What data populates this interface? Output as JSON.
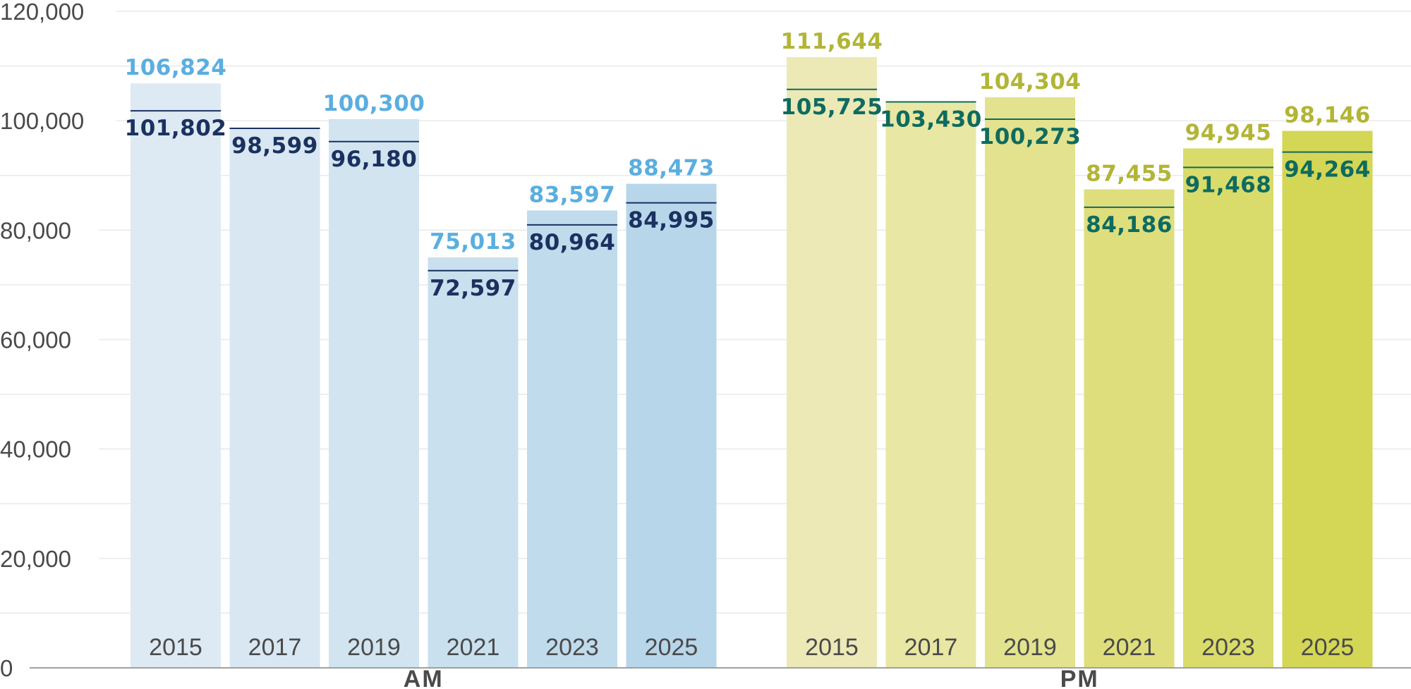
{
  "chart_data": {
    "type": "bar",
    "title": "",
    "xlabel": "",
    "ylabel": "",
    "ylim": [
      0,
      120000
    ],
    "yticks": [
      0,
      20000,
      40000,
      60000,
      80000,
      100000,
      120000
    ],
    "ytick_labels": [
      "0",
      "20,000",
      "40,000",
      "60,000",
      "80,000",
      "100,000",
      "120,000"
    ],
    "grid": true,
    "legend": "none",
    "groups": [
      {
        "label": "AM",
        "categories": [
          "2015",
          "2017",
          "2019",
          "2021",
          "2023",
          "2025"
        ],
        "bar_values": [
          106824,
          98599,
          100300,
          75013,
          83597,
          88473
        ],
        "bar_labels": [
          "106,824",
          "",
          "100,300",
          "75,013",
          "83,597",
          "88,473"
        ],
        "marker_values": [
          101802,
          98599,
          96180,
          72597,
          80964,
          84995
        ],
        "marker_labels": [
          "101,802",
          "98,599",
          "96,180",
          "72,597",
          "80,964",
          "84,995"
        ],
        "bar_colors": [
          "#deeaf3",
          "#d8e7f1",
          "#d1e4f0",
          "#c9e0ee",
          "#c0dbec",
          "#b8d6ea"
        ],
        "bar_label_color": "#5aaee0",
        "marker_color": "#1b3160"
      },
      {
        "label": "PM",
        "categories": [
          "2015",
          "2017",
          "2019",
          "2021",
          "2023",
          "2025"
        ],
        "bar_values": [
          111644,
          103430,
          104304,
          87455,
          94945,
          98146
        ],
        "bar_labels": [
          "111,644",
          "",
          "104,304",
          "87,455",
          "94,945",
          "98,146"
        ],
        "marker_values": [
          105725,
          103430,
          100273,
          84186,
          91468,
          94264
        ],
        "marker_labels": [
          "105,725",
          "103,430",
          "100,273",
          "84,186",
          "91,468",
          "94,264"
        ],
        "bar_colors": [
          "#ece9b7",
          "#e8e7a3",
          "#e3e28f",
          "#dede7d",
          "#d9dc6a",
          "#d4d655"
        ],
        "bar_label_color": "#b2b535",
        "marker_color": "#0e6b5f"
      }
    ]
  }
}
